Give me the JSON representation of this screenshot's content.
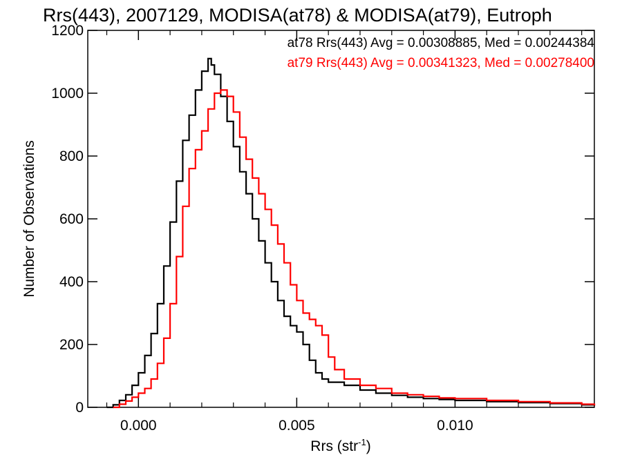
{
  "chart_data": {
    "type": "line",
    "title": "Rrs(443), 2007129, MODISA(at78) & MODISA(at79), Eutroph",
    "xlabel": "Rrs (str",
    "xlabel_sup": "-1",
    "xlabel_end": ")",
    "ylabel": "Number of Observations",
    "xlim": [
      -0.0016,
      0.0144
    ],
    "ylim": [
      0,
      1200
    ],
    "xticks": [
      0.0,
      0.005,
      0.01
    ],
    "xtick_labels": [
      "0.000",
      "0.005",
      "0.010"
    ],
    "yticks": [
      0,
      200,
      400,
      600,
      800,
      1000,
      1200
    ],
    "ytick_labels": [
      "0",
      "200",
      "400",
      "600",
      "800",
      "1000",
      "1200"
    ],
    "grid": false,
    "legend_position": "top-right",
    "series": [
      {
        "name": "at78 Rrs(443) Avg = 0.00308885, Med = 0.00244384",
        "color": "#000000",
        "points": [
          [
            -0.001,
            0
          ],
          [
            -0.0008,
            8
          ],
          [
            -0.0006,
            22
          ],
          [
            -0.0004,
            40
          ],
          [
            -0.0002,
            70
          ],
          [
            0.0,
            110
          ],
          [
            0.0002,
            165
          ],
          [
            0.0004,
            235
          ],
          [
            0.0006,
            330
          ],
          [
            0.0008,
            450
          ],
          [
            0.001,
            590
          ],
          [
            0.0012,
            720
          ],
          [
            0.0014,
            850
          ],
          [
            0.0016,
            930
          ],
          [
            0.0018,
            1010
          ],
          [
            0.002,
            1070
          ],
          [
            0.0022,
            1110
          ],
          [
            0.0023,
            1090
          ],
          [
            0.0024,
            1060
          ],
          [
            0.0026,
            990
          ],
          [
            0.0028,
            910
          ],
          [
            0.003,
            830
          ],
          [
            0.0032,
            750
          ],
          [
            0.0034,
            680
          ],
          [
            0.0036,
            600
          ],
          [
            0.0038,
            530
          ],
          [
            0.004,
            460
          ],
          [
            0.0042,
            400
          ],
          [
            0.0044,
            340
          ],
          [
            0.0046,
            290
          ],
          [
            0.0048,
            260
          ],
          [
            0.005,
            240
          ],
          [
            0.0052,
            200
          ],
          [
            0.0054,
            150
          ],
          [
            0.0056,
            110
          ],
          [
            0.0058,
            90
          ],
          [
            0.006,
            80
          ],
          [
            0.0065,
            70
          ],
          [
            0.007,
            55
          ],
          [
            0.0075,
            45
          ],
          [
            0.008,
            38
          ],
          [
            0.0085,
            32
          ],
          [
            0.009,
            28
          ],
          [
            0.0095,
            25
          ],
          [
            0.01,
            22
          ],
          [
            0.011,
            18
          ],
          [
            0.012,
            15
          ],
          [
            0.013,
            12
          ],
          [
            0.014,
            8
          ],
          [
            0.0144,
            5
          ]
        ]
      },
      {
        "name": "at79 Rrs(443) Avg = 0.00341323, Med = 0.00278400",
        "color": "#ff0000",
        "points": [
          [
            -0.0008,
            0
          ],
          [
            -0.0006,
            10
          ],
          [
            -0.0004,
            20
          ],
          [
            -0.0002,
            32
          ],
          [
            0.0,
            45
          ],
          [
            0.0002,
            60
          ],
          [
            0.0004,
            90
          ],
          [
            0.0006,
            140
          ],
          [
            0.0008,
            220
          ],
          [
            0.001,
            330
          ],
          [
            0.0012,
            480
          ],
          [
            0.0014,
            640
          ],
          [
            0.0016,
            760
          ],
          [
            0.0018,
            820
          ],
          [
            0.002,
            880
          ],
          [
            0.0022,
            950
          ],
          [
            0.0024,
            1000
          ],
          [
            0.0026,
            1010
          ],
          [
            0.0028,
            990
          ],
          [
            0.003,
            940
          ],
          [
            0.0032,
            860
          ],
          [
            0.0034,
            790
          ],
          [
            0.0036,
            730
          ],
          [
            0.0038,
            680
          ],
          [
            0.004,
            630
          ],
          [
            0.0042,
            580
          ],
          [
            0.0044,
            520
          ],
          [
            0.0046,
            460
          ],
          [
            0.0048,
            390
          ],
          [
            0.005,
            340
          ],
          [
            0.0052,
            300
          ],
          [
            0.0054,
            280
          ],
          [
            0.0056,
            260
          ],
          [
            0.0058,
            230
          ],
          [
            0.006,
            160
          ],
          [
            0.0062,
            120
          ],
          [
            0.0065,
            90
          ],
          [
            0.007,
            70
          ],
          [
            0.0075,
            60
          ],
          [
            0.008,
            45
          ],
          [
            0.0085,
            40
          ],
          [
            0.009,
            35
          ],
          [
            0.0095,
            30
          ],
          [
            0.01,
            28
          ],
          [
            0.011,
            22
          ],
          [
            0.012,
            18
          ],
          [
            0.013,
            14
          ],
          [
            0.014,
            10
          ],
          [
            0.0144,
            6
          ]
        ]
      }
    ]
  }
}
